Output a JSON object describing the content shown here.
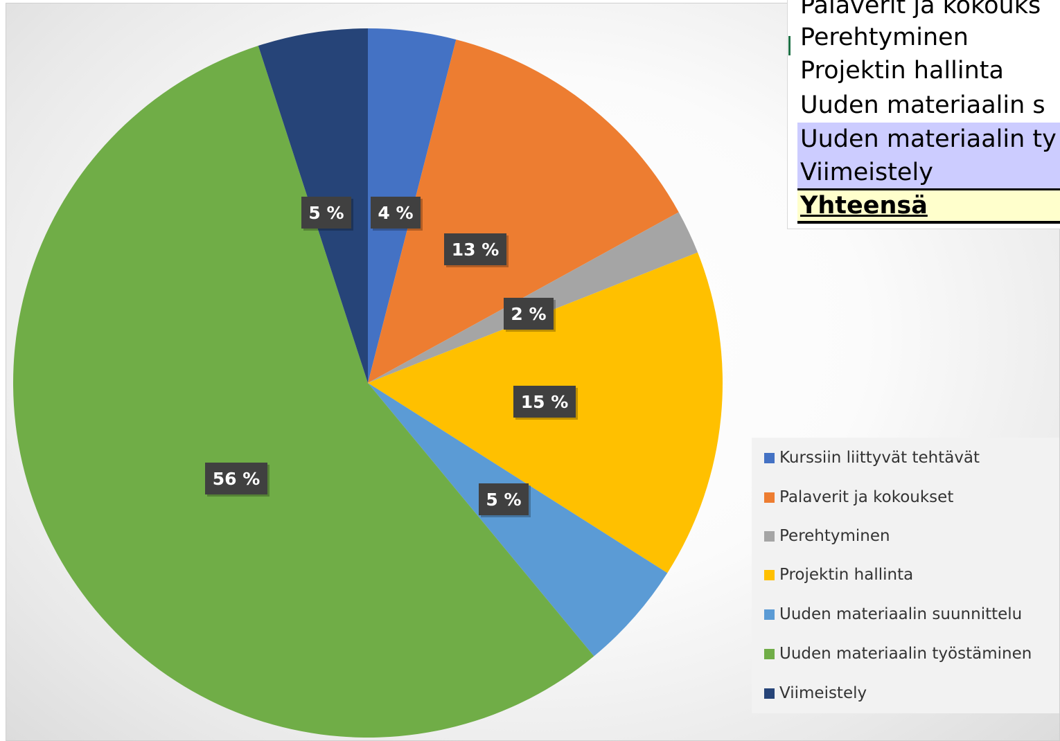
{
  "chart_data": {
    "type": "pie",
    "title": "",
    "legend_position": "right",
    "slices": [
      {
        "label": "Kurssiin liittyvät tehtävät",
        "value": 4,
        "display": "4 %",
        "color": "#4472c4"
      },
      {
        "label": "Palaverit ja kokoukset",
        "value": 13,
        "display": "13 %",
        "color": "#ed7d31"
      },
      {
        "label": "Perehtyminen",
        "value": 2,
        "display": "2 %",
        "color": "#a5a5a5"
      },
      {
        "label": "Projektin hallinta",
        "value": 15,
        "display": "15 %",
        "color": "#ffc000"
      },
      {
        "label": "Uuden materiaalin suunnittelu",
        "value": 5,
        "display": "5 %",
        "color": "#5b9bd5"
      },
      {
        "label": "Uuden materiaalin työstäminen",
        "value": 56,
        "display": "56 %",
        "color": "#70ad47"
      },
      {
        "label": "Viimeistely",
        "value": 5,
        "display": "5 %",
        "color": "#264478"
      }
    ]
  },
  "legend": {
    "items": [
      {
        "label": "Kurssiin liittyvät tehtävät",
        "color": "#4472c4"
      },
      {
        "label": "Palaverit ja kokoukset",
        "color": "#ed7d31"
      },
      {
        "label": "Perehtyminen",
        "color": "#a5a5a5"
      },
      {
        "label": "Projektin hallinta",
        "color": "#ffc000"
      },
      {
        "label": "Uuden materiaalin suunnittelu",
        "color": "#5b9bd5"
      },
      {
        "label": "Uuden materiaalin työstäminen",
        "color": "#70ad47"
      },
      {
        "label": "Viimeistely",
        "color": "#264478"
      }
    ]
  },
  "sheet": {
    "rows": [
      {
        "text": "Palaverit ja kokouks"
      },
      {
        "text": "Perehtyminen"
      },
      {
        "text": "Projektin hallinta"
      },
      {
        "text": "Uuden materiaalin s"
      },
      {
        "text": "Uuden materiaalin ty"
      },
      {
        "text": "Viimeistely"
      },
      {
        "text": "Yhteensä"
      }
    ]
  }
}
